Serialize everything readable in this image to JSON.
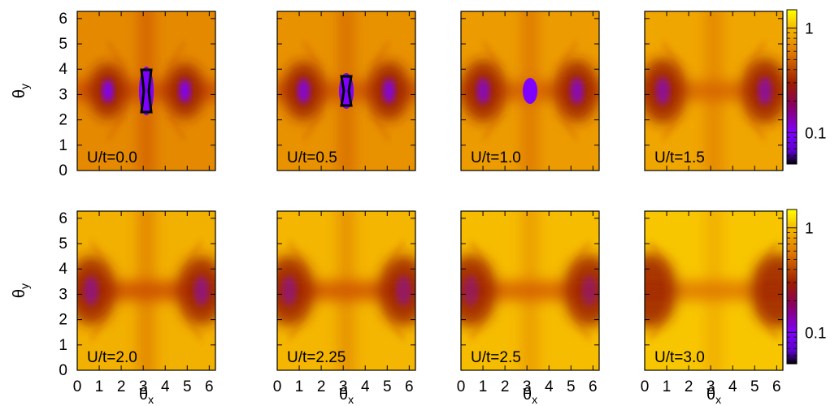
{
  "chart_data": {
    "type": "heatmap",
    "layout": "2x4 panel grid",
    "xlabel_base": "θ",
    "xlabel_sub": "x",
    "ylabel_base": "θ",
    "ylabel_sub": "y",
    "x_ticks": [
      "0",
      "1",
      "2",
      "3",
      "4",
      "5",
      "6"
    ],
    "y_ticks": [
      "0",
      "1",
      "2",
      "3",
      "4",
      "5",
      "6"
    ],
    "xlim": [
      0,
      6.283
    ],
    "ylim": [
      0,
      6.283
    ],
    "colorbar": {
      "scale": "log",
      "ticks": [
        "1",
        "0.1"
      ],
      "tick_values": [
        1,
        0.1
      ],
      "range": [
        0.05,
        1.5
      ]
    },
    "colors": {
      "low": "#000000",
      "purple": "#7f00ff",
      "dark_red": "#9b1c00",
      "orange": "#e07800",
      "yellow": "#ffff00"
    },
    "panels": [
      {
        "label": "U/t=0.0",
        "U_over_t": 0.0
      },
      {
        "label": "U/t=0.5",
        "U_over_t": 0.5
      },
      {
        "label": "U/t=1.0",
        "U_over_t": 1.0
      },
      {
        "label": "U/t=1.5",
        "U_over_t": 1.5
      },
      {
        "label": "U/t=2.0",
        "U_over_t": 2.0
      },
      {
        "label": "U/t=2.25",
        "U_over_t": 2.25
      },
      {
        "label": "U/t=2.5",
        "U_over_t": 2.5
      },
      {
        "label": "U/t=3.0",
        "U_over_t": 3.0
      }
    ]
  }
}
